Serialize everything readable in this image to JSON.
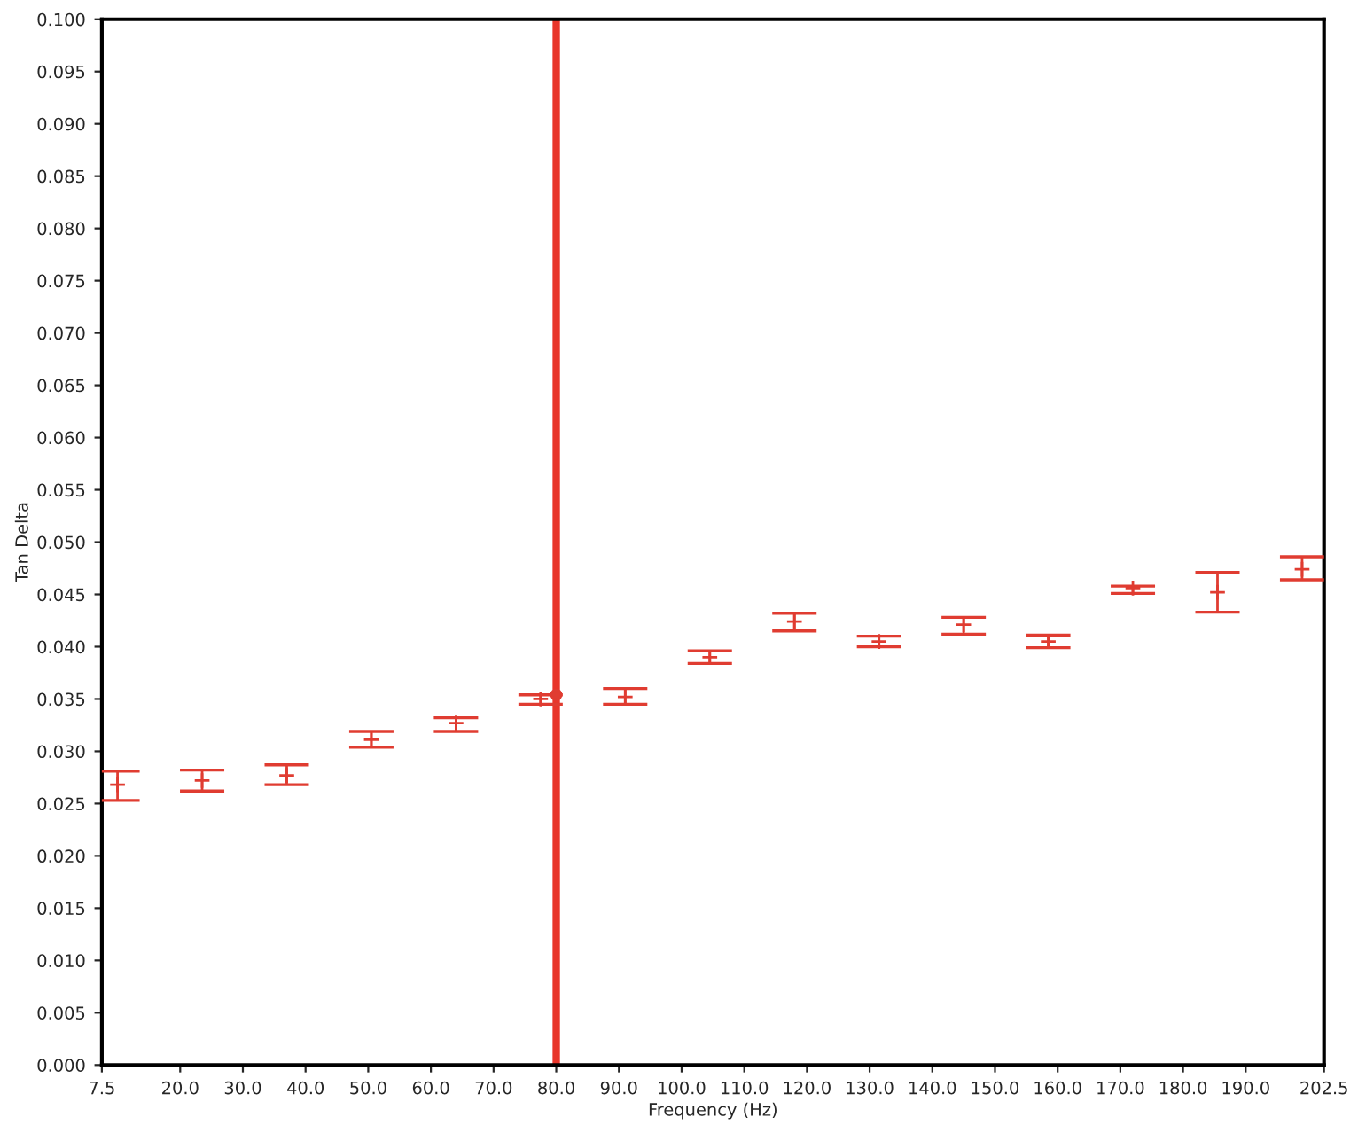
{
  "chart_data": {
    "type": "scatter",
    "xlabel": "Frequency (Hz)",
    "ylabel": "Tan Delta",
    "x": [
      10,
      23.5,
      37,
      50.5,
      64,
      77.5,
      91,
      104.5,
      118,
      131.5,
      145,
      158.5,
      172,
      185.5,
      199
    ],
    "series": [
      {
        "color": "#e03c31",
        "marker": "cross",
        "values": [
          0.0268,
          0.0272,
          0.0277,
          0.0311,
          0.0327,
          0.035,
          0.0352,
          0.039,
          0.0424,
          0.0405,
          0.0421,
          0.0405,
          0.0456,
          0.0452,
          0.0474
        ],
        "errors": [
          [
            0.0253,
            0.0281
          ],
          [
            0.0262,
            0.0282
          ],
          [
            0.0268,
            0.0287
          ],
          [
            0.0304,
            0.0319
          ],
          [
            0.0319,
            0.0332
          ],
          [
            0.0345,
            0.0354
          ],
          [
            0.0345,
            0.036
          ],
          [
            0.0384,
            0.0396
          ],
          [
            0.0415,
            0.0432
          ],
          [
            0.04,
            0.041
          ],
          [
            0.0412,
            0.0428
          ],
          [
            0.0399,
            0.0411
          ],
          [
            0.0451,
            0.0458
          ],
          [
            0.0433,
            0.0471
          ],
          [
            0.0464,
            0.0486
          ]
        ]
      },
      {
        "color": "#e03c31",
        "marker": "circle",
        "x": [
          80
        ],
        "values": [
          0.0354
        ]
      }
    ],
    "ref_lines": [
      {
        "axis": "x",
        "value": 80,
        "color": "#e8352a",
        "line_style": "solid"
      }
    ],
    "xlim": [
      7.5,
      202.5
    ],
    "xticks": [
      {
        "value": 7.5,
        "label": "7.5"
      },
      {
        "value": 20,
        "label": "20.0"
      },
      {
        "value": 30,
        "label": "30.0"
      },
      {
        "value": 40,
        "label": "40.0"
      },
      {
        "value": 50,
        "label": "50.0"
      },
      {
        "value": 60,
        "label": "60.0"
      },
      {
        "value": 70,
        "label": "70.0"
      },
      {
        "value": 80,
        "label": "80.0"
      },
      {
        "value": 90,
        "label": "90.0"
      },
      {
        "value": 100,
        "label": "100.0"
      },
      {
        "value": 110,
        "label": "110.0"
      },
      {
        "value": 120,
        "label": "120.0"
      },
      {
        "value": 130,
        "label": "130.0"
      },
      {
        "value": 140,
        "label": "140.0"
      },
      {
        "value": 150,
        "label": "150.0"
      },
      {
        "value": 160,
        "label": "160.0"
      },
      {
        "value": 170,
        "label": "170.0"
      },
      {
        "value": 180,
        "label": "180.0"
      },
      {
        "value": 190,
        "label": "190.0"
      },
      {
        "value": 202.5,
        "label": "202.5"
      }
    ],
    "ylim": [
      0,
      0.1
    ],
    "yticks": [
      {
        "value": 0,
        "label": "0.000"
      },
      {
        "value": 0.005,
        "label": "0.005"
      },
      {
        "value": 0.01,
        "label": "0.010"
      },
      {
        "value": 0.015,
        "label": "0.015"
      },
      {
        "value": 0.02,
        "label": "0.020"
      },
      {
        "value": 0.025,
        "label": "0.025"
      },
      {
        "value": 0.03,
        "label": "0.030"
      },
      {
        "value": 0.035,
        "label": "0.035"
      },
      {
        "value": 0.04,
        "label": "0.040"
      },
      {
        "value": 0.045,
        "label": "0.045"
      },
      {
        "value": 0.05,
        "label": "0.050"
      },
      {
        "value": 0.055,
        "label": "0.055"
      },
      {
        "value": 0.06,
        "label": "0.060"
      },
      {
        "value": 0.065,
        "label": "0.065"
      },
      {
        "value": 0.07,
        "label": "0.070"
      },
      {
        "value": 0.075,
        "label": "0.075"
      },
      {
        "value": 0.08,
        "label": "0.080"
      },
      {
        "value": 0.085,
        "label": "0.085"
      },
      {
        "value": 0.09,
        "label": "0.090"
      },
      {
        "value": 0.095,
        "label": "0.095"
      },
      {
        "value": 0.1,
        "label": "0.100"
      }
    ],
    "grid": false,
    "legend": false
  }
}
